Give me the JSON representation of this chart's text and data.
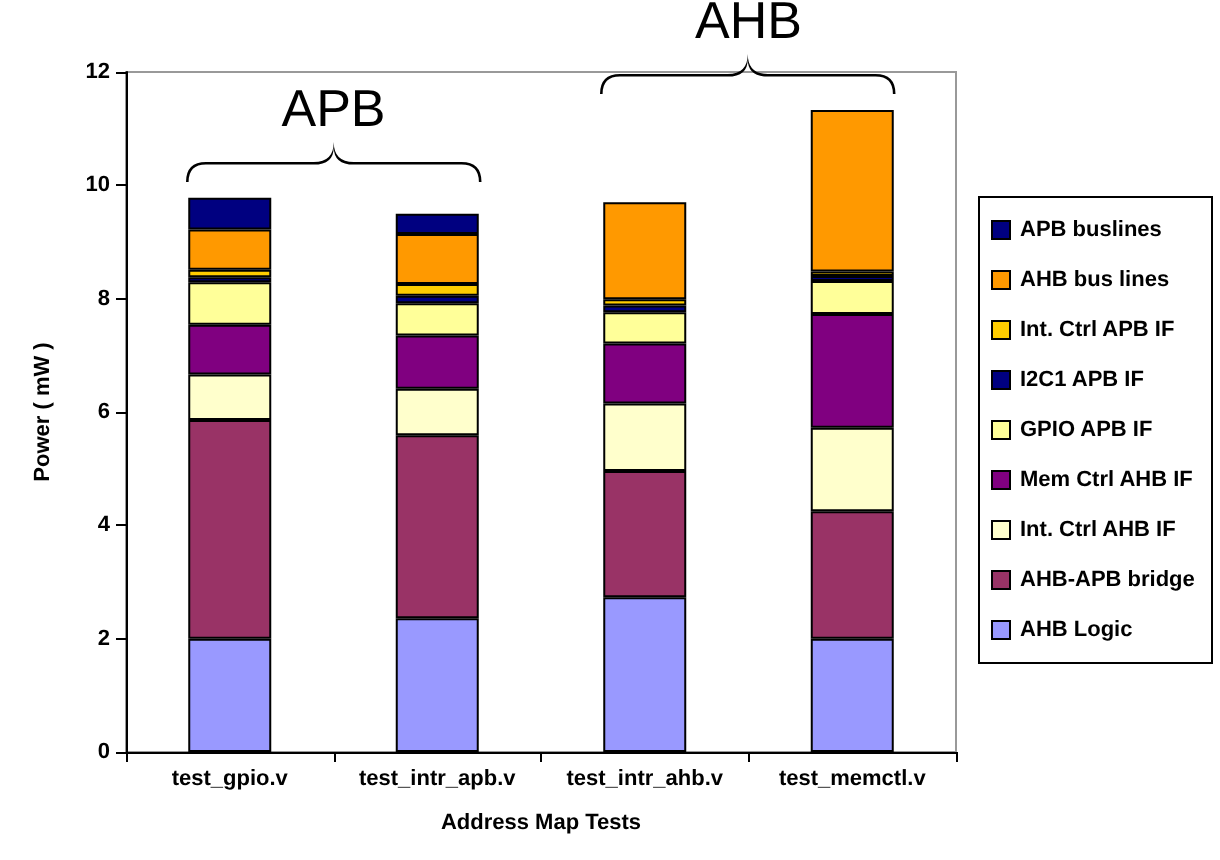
{
  "chart_data": {
    "type": "bar",
    "stacked": true,
    "xlabel": "Address Map Tests",
    "ylabel": "Power ( mW )",
    "categories": [
      "test_gpio.v",
      "test_intr_apb.v",
      "test_intr_ahb.v",
      "test_memctl.v"
    ],
    "ylim": [
      0,
      12
    ],
    "yticks": [
      0,
      2,
      4,
      6,
      8,
      10,
      12
    ],
    "grid": false,
    "legend": "right",
    "annotations": [
      "APB",
      "AHB"
    ],
    "series": [
      {
        "name": "AHB Logic",
        "color": "#9999ff",
        "values": [
          2.0,
          2.36,
          2.73,
          2.0
        ]
      },
      {
        "name": "AHB-APB bridge",
        "color": "#993366",
        "values": [
          3.86,
          3.23,
          2.23,
          2.25
        ]
      },
      {
        "name": "Int. Ctrl AHB IF",
        "color": "#ffffcc",
        "values": [
          0.8,
          0.82,
          1.19,
          1.47
        ]
      },
      {
        "name": "Mem Ctrl AHB IF",
        "color": "#800080",
        "values": [
          0.88,
          0.94,
          1.06,
          2.01
        ]
      },
      {
        "name": "GPIO APB IF",
        "color": "#ffff99",
        "values": [
          0.75,
          0.57,
          0.55,
          0.58
        ]
      },
      {
        "name": "I2C1 APB IF",
        "color": "#000080",
        "values": [
          0.09,
          0.13,
          0.12,
          0.09
        ]
      },
      {
        "name": "Int. Ctrl APB IF",
        "color": "#ffcc00",
        "values": [
          0.13,
          0.21,
          0.11,
          0.08
        ]
      },
      {
        "name": "AHB bus lines",
        "color": "#ff9900",
        "values": [
          0.71,
          0.88,
          1.71,
          2.85
        ]
      },
      {
        "name": "APB buslines",
        "color": "#000080",
        "values": [
          0.56,
          0.36,
          0,
          0
        ]
      }
    ]
  }
}
